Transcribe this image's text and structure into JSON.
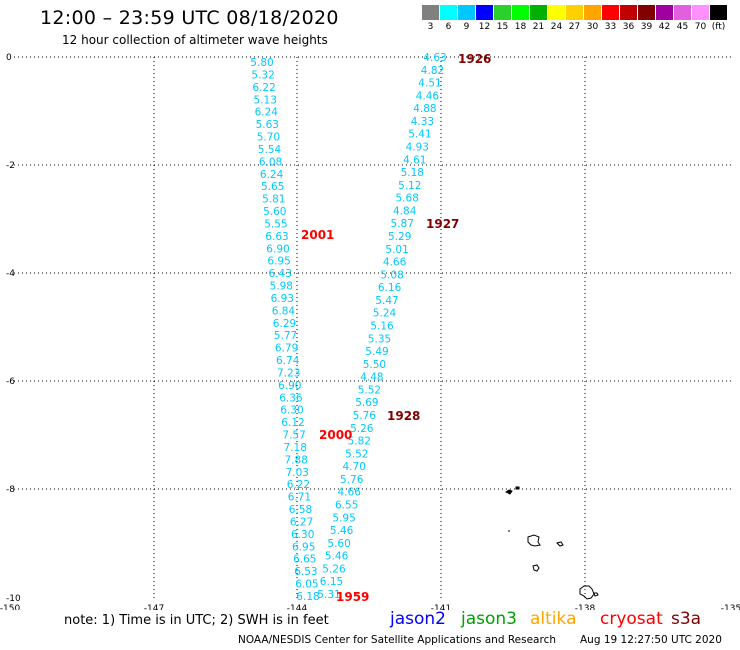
{
  "header": {
    "title": "12:00 – 23:59 UTC 08/18/2020",
    "subtitle": "12 hour collection of altimeter wave heights"
  },
  "colorbar": {
    "colors": [
      "#808080",
      "#00ffff",
      "#00c8ff",
      "#0000ff",
      "#2bd02b",
      "#00ff00",
      "#00b000",
      "#ffff00",
      "#ffd000",
      "#ffa500",
      "#ff0000",
      "#c00000",
      "#800000",
      "#a000a0",
      "#e060e0",
      "#ff90ff",
      "#000000"
    ],
    "labels": [
      "3",
      "6",
      "9",
      "12",
      "15",
      "18",
      "21",
      "24",
      "27",
      "30",
      "33",
      "36",
      "39",
      "42",
      "45",
      "70",
      "(ft)"
    ]
  },
  "axes": {
    "x_ticks": [
      "-150",
      "-147",
      "-144",
      "-141",
      "-138",
      "-135"
    ],
    "y_ticks": [
      "0",
      "-2",
      "-4",
      "-6",
      "-8",
      "-10"
    ]
  },
  "tracks": [
    {
      "name": "track-a",
      "color": "#00c8ff",
      "values": [
        "5.80",
        "5.32",
        "6.22",
        "5.13",
        "6.24",
        "5.63",
        "5.70",
        "5.54",
        "6.08",
        "6.24",
        "5.65",
        "5.81",
        "5.60",
        "5.55",
        "6.63",
        "6.90",
        "6.95",
        "6.43",
        "5.98",
        "6.93",
        "6.84",
        "6.29",
        "5.77",
        "6.79",
        "6.74",
        "7.23",
        "6.90",
        "6.36",
        "6.30",
        "6.12",
        "7.57",
        "7.18",
        "7.88",
        "7.03",
        "6.22",
        "6.71",
        "6.58",
        "6.27",
        "6.30",
        "6.95",
        "6.65",
        "6.53",
        "6.05",
        "6.18"
      ]
    },
    {
      "name": "track-b",
      "color": "#00c8ff",
      "values": [
        "4.63",
        "4.82",
        "4.51",
        "4.46",
        "4.88",
        "4.33",
        "5.41",
        "4.93",
        "4.61",
        "5.18",
        "5.12",
        "5.68",
        "4.84",
        "5.87",
        "5.29",
        "5.01",
        "4.66",
        "5.08",
        "6.16",
        "5.47",
        "5.24",
        "5.16",
        "5.35",
        "5.49",
        "5.50",
        "4.48",
        "5.52",
        "5.69",
        "5.76",
        "5.26",
        "5.82",
        "5.52",
        "4.70",
        "5.76",
        "4.66",
        "6.55",
        "5.95",
        "5.46",
        "5.60",
        "5.46",
        "5.26",
        "6.15",
        "5.31"
      ]
    }
  ],
  "time_labels": [
    {
      "text": "1926",
      "color": "#800000"
    },
    {
      "text": "1927",
      "color": "#800000"
    },
    {
      "text": "1928",
      "color": "#800000"
    },
    {
      "text": "2001",
      "color": "#ff0000"
    },
    {
      "text": "2000",
      "color": "#ff0000"
    },
    {
      "text": "1959",
      "color": "#ff0000"
    }
  ],
  "footer": {
    "note": "note:  1) Time is in UTC;  2) SWH is in feet",
    "legend": [
      {
        "name": "jason2",
        "color": "#0000ff"
      },
      {
        "name": "jason3",
        "color": "#00a000"
      },
      {
        "name": "altika",
        "color": "#ffa500"
      },
      {
        "name": "cryosat",
        "color": "#ff0000"
      },
      {
        "name": "s3a",
        "color": "#800000"
      }
    ],
    "credit": "NOAA/NESDIS Center for Satellite Applications and Research",
    "timestamp": "Aug 19 12:27:50 UTC 2020"
  }
}
